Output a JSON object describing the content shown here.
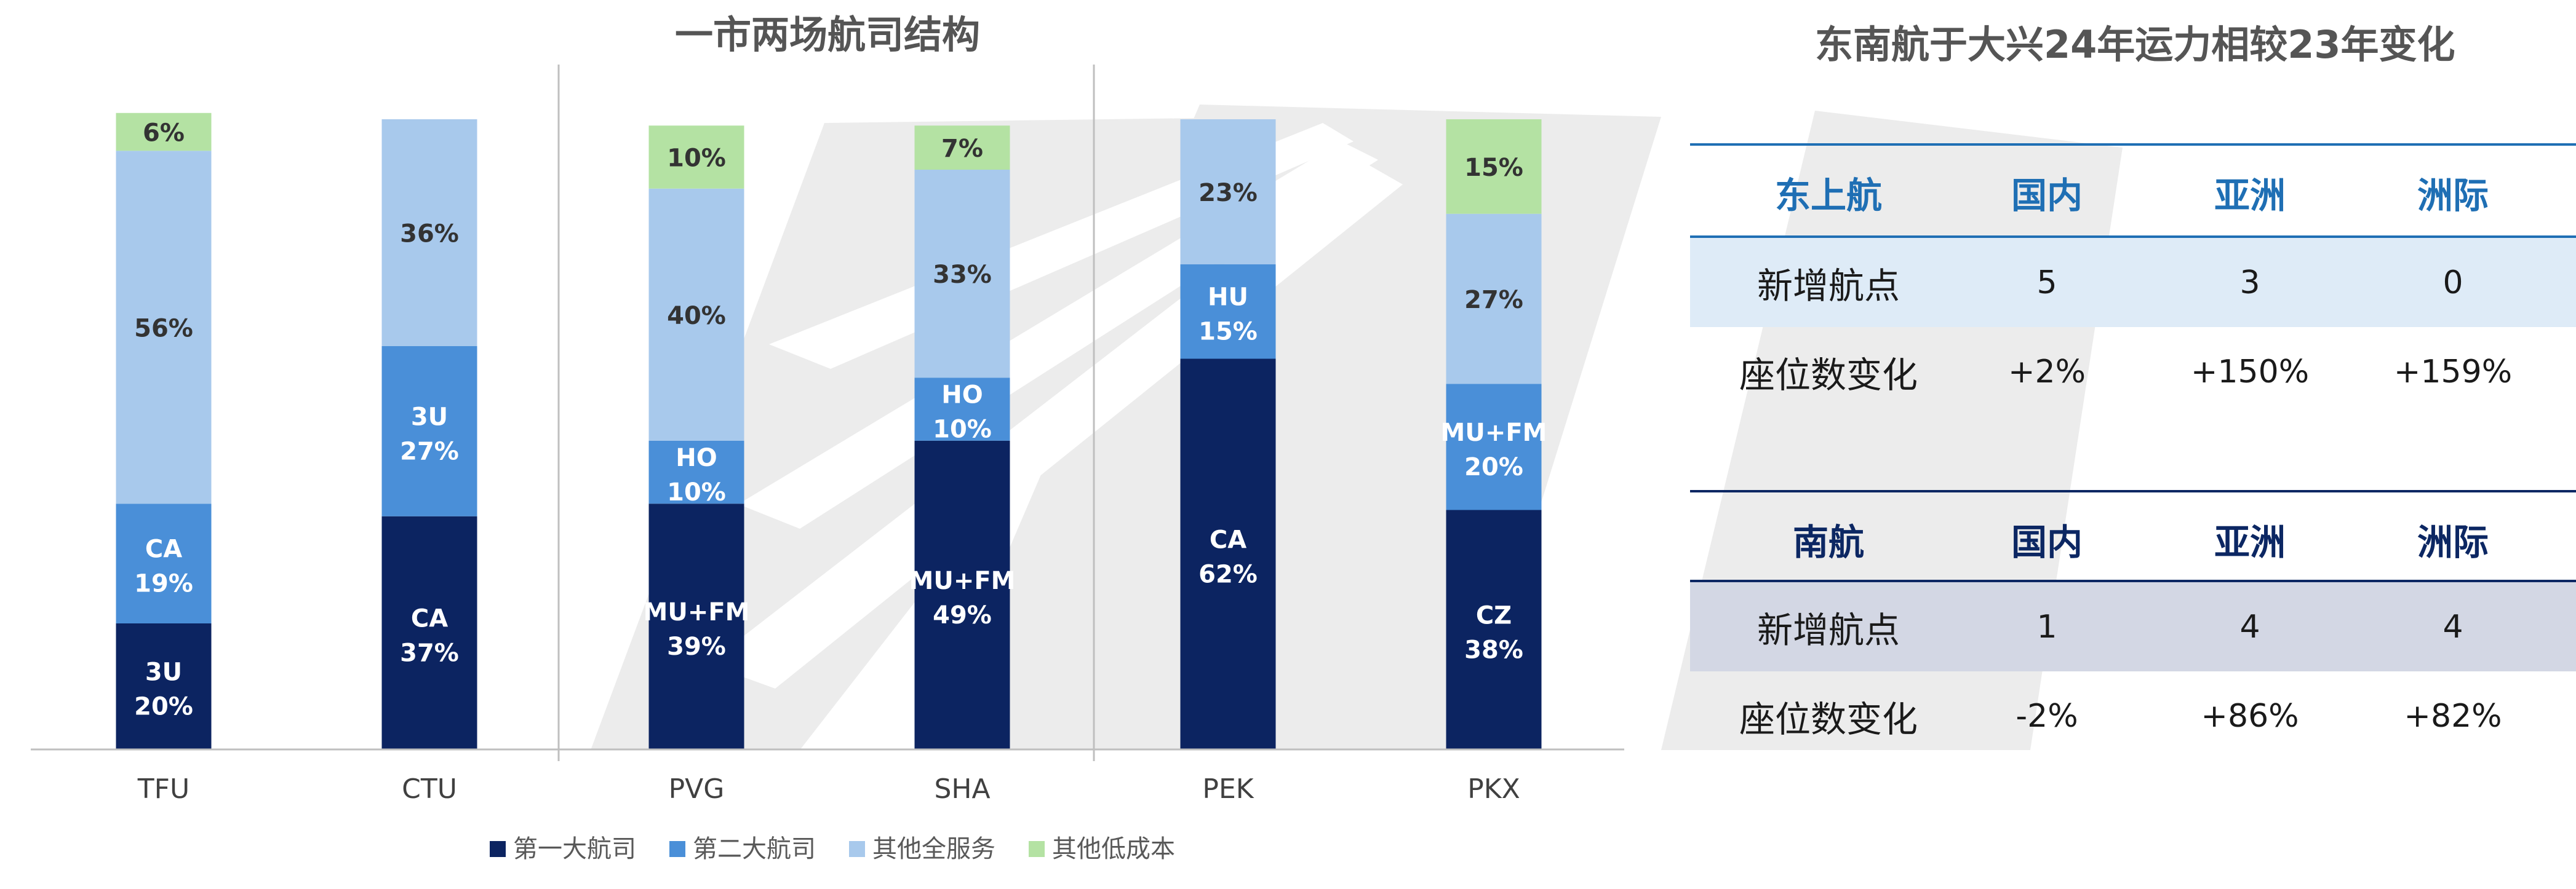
{
  "chart_data": {
    "type": "bar",
    "stacked": true,
    "percent": true,
    "title": "一市两场航司结构",
    "categories": [
      "TFU",
      "CTU",
      "PVG",
      "SHA",
      "PEK",
      "PKX"
    ],
    "ylim": [
      0,
      100
    ],
    "legend_position": "bottom",
    "series": [
      {
        "name": "第一大航司",
        "color": "#0c2461",
        "values": [
          20,
          37,
          39,
          49,
          62,
          38
        ],
        "labels": [
          "3U",
          "CA",
          "MU+FM",
          "MU+FM",
          "CA",
          "CZ"
        ]
      },
      {
        "name": "第二大航司",
        "color": "#4a8fd8",
        "values": [
          19,
          27,
          10,
          10,
          15,
          20
        ],
        "labels": [
          "CA",
          "3U",
          "HO",
          "HO",
          "HU",
          "MU+FM"
        ]
      },
      {
        "name": "其他全服务",
        "color": "#a8c9ec",
        "values": [
          56,
          36,
          40,
          33,
          23,
          27
        ],
        "labels": [
          "",
          "",
          "",
          "",
          "",
          ""
        ]
      },
      {
        "name": "其他低成本",
        "color": "#b4e2a3",
        "values": [
          6,
          0,
          10,
          7,
          0,
          15
        ],
        "labels": [
          "",
          "",
          "",
          "",
          "",
          ""
        ]
      }
    ]
  },
  "table": {
    "title": "东南航于大兴24年运力相较23年变化",
    "sections": [
      {
        "header": [
          "东上航",
          "国内",
          "亚洲",
          "洲际"
        ],
        "rows": [
          [
            "新增航点",
            "5",
            "3",
            "0"
          ],
          [
            "座位数变化",
            "+2%",
            "+150%",
            "+159%"
          ]
        ]
      },
      {
        "header": [
          "南航",
          "国内",
          "亚洲",
          "洲际"
        ],
        "rows": [
          [
            "新增航点",
            "1",
            "4",
            "4"
          ],
          [
            "座位数变化",
            "-2%",
            "+86%",
            "+82%"
          ]
        ]
      }
    ]
  }
}
